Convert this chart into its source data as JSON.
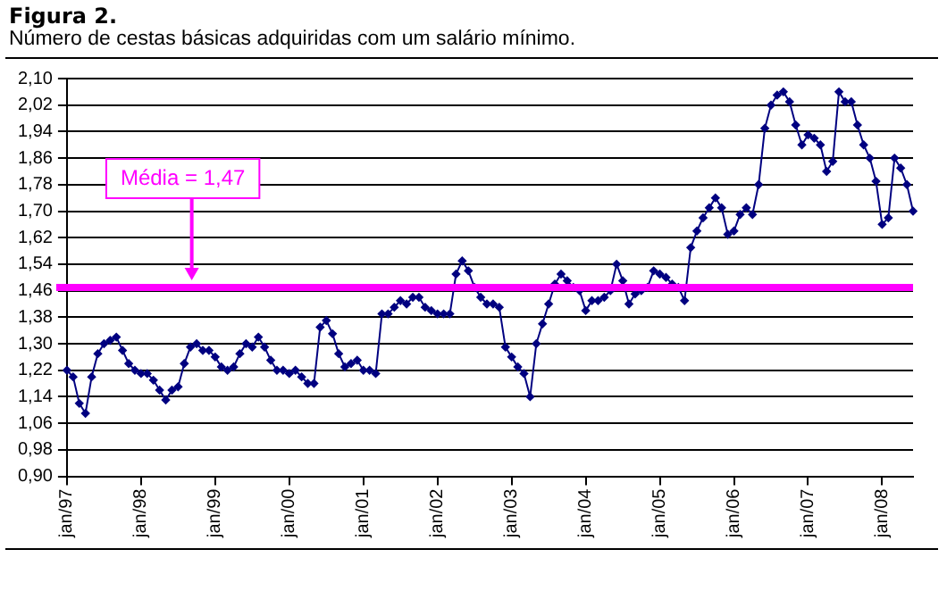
{
  "chart_data": {
    "type": "line",
    "title": "Figura 2.",
    "subtitle": "Número de cestas básicas adquiridas com um salário mínimo.",
    "categories": [
      "jan/97",
      null,
      null,
      null,
      null,
      null,
      null,
      null,
      null,
      null,
      null,
      null,
      "jan/98",
      null,
      null,
      null,
      null,
      null,
      null,
      null,
      null,
      null,
      null,
      null,
      "jan/99",
      null,
      null,
      null,
      null,
      null,
      null,
      null,
      null,
      null,
      null,
      null,
      "jan/00",
      null,
      null,
      null,
      null,
      null,
      null,
      null,
      null,
      null,
      null,
      null,
      "jan/01",
      null,
      null,
      null,
      null,
      null,
      null,
      null,
      null,
      null,
      null,
      null,
      "jan/02",
      null,
      null,
      null,
      null,
      null,
      null,
      null,
      null,
      null,
      null,
      null,
      "jan/03",
      null,
      null,
      null,
      null,
      null,
      null,
      null,
      null,
      null,
      null,
      null,
      "jan/04",
      null,
      null,
      null,
      null,
      null,
      null,
      null,
      null,
      null,
      null,
      null,
      "jan/05",
      null,
      null,
      null,
      null,
      null,
      null,
      null,
      null,
      null,
      null,
      null,
      "jan/06",
      null,
      null,
      null,
      null,
      null,
      null,
      null,
      null,
      null,
      null,
      null,
      "jan/07",
      null,
      null,
      null,
      null,
      null,
      null,
      null,
      null,
      null,
      null,
      null,
      "jan/08",
      null,
      null,
      null,
      null,
      null
    ],
    "series": [
      {
        "color": "#000080",
        "values": [
          1.22,
          1.2,
          1.12,
          1.09,
          1.2,
          1.27,
          1.3,
          1.31,
          1.32,
          1.28,
          1.24,
          1.22,
          1.21,
          1.21,
          1.19,
          1.16,
          1.13,
          1.16,
          1.17,
          1.24,
          1.29,
          1.3,
          1.28,
          1.28,
          1.26,
          1.23,
          1.22,
          1.23,
          1.27,
          1.3,
          1.29,
          1.32,
          1.29,
          1.25,
          1.22,
          1.22,
          1.21,
          1.22,
          1.2,
          1.18,
          1.18,
          1.35,
          1.37,
          1.33,
          1.27,
          1.23,
          1.24,
          1.25,
          1.22,
          1.22,
          1.21,
          1.39,
          1.39,
          1.41,
          1.43,
          1.42,
          1.44,
          1.44,
          1.41,
          1.4,
          1.39,
          1.39,
          1.39,
          1.51,
          1.55,
          1.52,
          1.47,
          1.44,
          1.42,
          1.42,
          1.41,
          1.29,
          1.26,
          1.23,
          1.21,
          1.14,
          1.3,
          1.36,
          1.42,
          1.48,
          1.51,
          1.49,
          1.47,
          1.46,
          1.4,
          1.43,
          1.43,
          1.44,
          1.46,
          1.54,
          1.49,
          1.42,
          1.45,
          1.46,
          1.47,
          1.52,
          1.51,
          1.5,
          1.48,
          1.47,
          1.43,
          1.59,
          1.64,
          1.68,
          1.71,
          1.74,
          1.71,
          1.63,
          1.64,
          1.69,
          1.71,
          1.69,
          1.78,
          1.95,
          2.02,
          2.05,
          2.06,
          2.03,
          1.96,
          1.9,
          1.93,
          1.92,
          1.9,
          1.82,
          1.85,
          2.06,
          2.03,
          2.03,
          1.96,
          1.9,
          1.86,
          1.79,
          1.66,
          1.68,
          1.86,
          1.83,
          1.78,
          1.7
        ]
      }
    ],
    "ylim": [
      0.9,
      2.1
    ],
    "yticks": [
      {
        "value": 0.9,
        "label": "0,90"
      },
      {
        "value": 0.98,
        "label": "0,98"
      },
      {
        "value": 1.06,
        "label": "1,06"
      },
      {
        "value": 1.14,
        "label": "1,14"
      },
      {
        "value": 1.22,
        "label": "1,22"
      },
      {
        "value": 1.3,
        "label": "1,30"
      },
      {
        "value": 1.38,
        "label": "1,38"
      },
      {
        "value": 1.46,
        "label": "1,46"
      },
      {
        "value": 1.54,
        "label": "1,54"
      },
      {
        "value": 1.62,
        "label": "1,62"
      },
      {
        "value": 1.7,
        "label": "1,70"
      },
      {
        "value": 1.78,
        "label": "1,78"
      },
      {
        "value": 1.86,
        "label": "1,86"
      },
      {
        "value": 1.94,
        "label": "1,94"
      },
      {
        "value": 2.02,
        "label": "2,02"
      },
      {
        "value": 2.1,
        "label": "2,10"
      }
    ],
    "ref_lines": [
      {
        "axis": "y",
        "value": 1.47,
        "label": "Média = 1,47",
        "color": "#ff00ff"
      }
    ],
    "grid": "y",
    "legend": false,
    "marker": "diamond",
    "line_style": "solid"
  }
}
